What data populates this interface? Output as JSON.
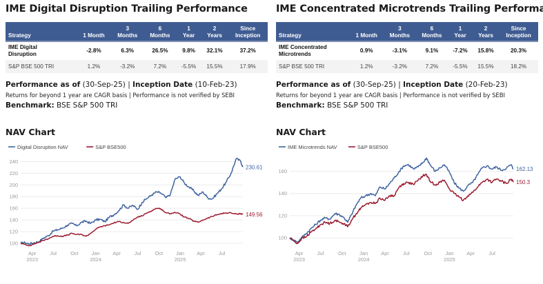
{
  "panels": [
    {
      "title": "IME Digital Disruption Trailing Performance",
      "table": {
        "headers": [
          [
            "Strategy"
          ],
          [
            "1 Month"
          ],
          [
            "3",
            "Months"
          ],
          [
            "6",
            "Months"
          ],
          [
            "1",
            "Year"
          ],
          [
            "2",
            "Years"
          ],
          [
            "Since",
            "Inception"
          ]
        ],
        "rows": [
          {
            "name": [
              "IME Digital",
              "Disruption"
            ],
            "values": [
              "-2.8%",
              "6.3%",
              "26.5%",
              "9.8%",
              "32.1%",
              "37.2%"
            ]
          },
          {
            "name": [
              "S&P BSE 500 TRI"
            ],
            "values": [
              "1.2%",
              "-3.2%",
              "7.2%",
              "-5.5%",
              "15.5%",
              "17.9%"
            ]
          }
        ]
      },
      "perf_asof_label": "Performance as of",
      "perf_asof_value": " (30-Sep-25) | ",
      "inception_label": "Inception Date",
      "inception_value": " (10-Feb-23)",
      "note": "Returns for beyond 1 year are CAGR basis | Performance is not verified by SEBI",
      "benchmark_label": "Benchmark:",
      "benchmark_value": " BSE S&P 500 TRI",
      "nav_title": "NAV Chart"
    },
    {
      "title": "IME Concentrated Microtrends Trailing Performance",
      "table": {
        "headers": [
          [
            "Strategy"
          ],
          [
            "1 Month"
          ],
          [
            "3",
            "Months"
          ],
          [
            "6",
            "Months"
          ],
          [
            "1",
            "Year"
          ],
          [
            "2",
            "Years"
          ],
          [
            "Since",
            "Inception"
          ]
        ],
        "rows": [
          {
            "name": [
              "IME Concentrated",
              "Microtrends"
            ],
            "values": [
              "0.9%",
              "-3.1%",
              "9.1%",
              "-7.2%",
              "15.8%",
              "20.3%"
            ]
          },
          {
            "name": [
              "S&P BSE 500 TRI"
            ],
            "values": [
              "1.2%",
              "-3.2%",
              "7.2%",
              "-5.5%",
              "15.5%",
              "18.2%"
            ]
          }
        ]
      },
      "perf_asof_label": "Performance as of",
      "perf_asof_value": " (30-Sep-25) | ",
      "inception_label": "Inception Date",
      "inception_value": " (20-Feb-23)",
      "note": "Returns for beyond 1 year are CAGR basis | Performance is not verified by SEBI",
      "benchmark_label": "Benchmark:",
      "benchmark_value": " BSE S&P 500 TRI",
      "nav_title": "NAV Chart"
    }
  ],
  "colors": {
    "header_bg": "#3f5c92",
    "strategy_line": "#3f64a0",
    "benchmark_line": "#9b1b30"
  },
  "chart_data": [
    {
      "type": "line",
      "title": "NAV Chart",
      "xlabel": "",
      "ylabel": "",
      "x_range": [
        "2023-02-10",
        "2025-09-30"
      ],
      "ylim": [
        94,
        250
      ],
      "yticks": [
        100,
        120,
        140,
        160,
        180,
        200,
        220,
        240
      ],
      "xticks": [
        {
          "date": "2023-04-01",
          "label": "Apr",
          "sub": "2023"
        },
        {
          "date": "2023-07-01",
          "label": "Jul",
          "sub": ""
        },
        {
          "date": "2023-10-01",
          "label": "Oct",
          "sub": ""
        },
        {
          "date": "2024-01-01",
          "label": "Jan",
          "sub": "2024"
        },
        {
          "date": "2024-04-01",
          "label": "Apr",
          "sub": ""
        },
        {
          "date": "2024-07-01",
          "label": "Jul",
          "sub": ""
        },
        {
          "date": "2024-10-01",
          "label": "Oct",
          "sub": ""
        },
        {
          "date": "2025-01-01",
          "label": "Jan",
          "sub": "2025"
        },
        {
          "date": "2025-04-01",
          "label": "Apr",
          "sub": ""
        },
        {
          "date": "2025-07-01",
          "label": "Jul",
          "sub": ""
        }
      ],
      "grid": true,
      "legend": "top-left",
      "x": [
        "2023-02-10",
        "2023-03-01",
        "2023-03-20",
        "2023-04-10",
        "2023-05-01",
        "2023-05-20",
        "2023-06-10",
        "2023-07-01",
        "2023-07-20",
        "2023-08-10",
        "2023-09-01",
        "2023-09-20",
        "2023-10-10",
        "2023-11-01",
        "2023-11-20",
        "2023-12-10",
        "2024-01-01",
        "2024-01-20",
        "2024-02-10",
        "2024-03-01",
        "2024-03-20",
        "2024-04-10",
        "2024-05-01",
        "2024-05-20",
        "2024-06-10",
        "2024-07-01",
        "2024-07-20",
        "2024-08-10",
        "2024-09-01",
        "2024-09-20",
        "2024-10-10",
        "2024-11-01",
        "2024-11-20",
        "2024-12-10",
        "2025-01-01",
        "2025-01-20",
        "2025-02-10",
        "2025-03-01",
        "2025-03-20",
        "2025-04-10",
        "2025-05-01",
        "2025-05-20",
        "2025-06-10",
        "2025-07-01",
        "2025-07-20",
        "2025-08-10",
        "2025-09-01",
        "2025-09-20",
        "2025-09-30"
      ],
      "series": [
        {
          "name": "Digital Disruption NAV",
          "end_label": "230.61",
          "values": [
            100,
            101,
            99,
            101,
            103,
            109,
            113,
            121,
            123,
            126,
            131,
            134,
            130,
            136,
            138,
            134,
            140,
            141,
            137,
            145,
            149,
            156,
            166,
            160,
            165,
            158,
            170,
            177,
            183,
            188,
            186,
            178,
            184,
            210,
            214,
            203,
            196,
            190,
            182,
            188,
            178,
            176,
            185,
            194,
            205,
            220,
            245,
            241,
            230.61
          ]
        },
        {
          "name": "S&P BSE500",
          "end_label": "149.56",
          "values": [
            100,
            98,
            96,
            99,
            102,
            105,
            108,
            112,
            113,
            112,
            114,
            117,
            115,
            115,
            112,
            117,
            124,
            128,
            130,
            132,
            135,
            137,
            136,
            134,
            139,
            145,
            147,
            152,
            156,
            160,
            159,
            152,
            151,
            153,
            150,
            145,
            142,
            138,
            136,
            140,
            143,
            146,
            149,
            151,
            152,
            152,
            150,
            151,
            149.56
          ]
        }
      ]
    },
    {
      "type": "line",
      "title": "NAV Chart",
      "xlabel": "",
      "ylabel": "",
      "x_range": [
        "2023-02-20",
        "2025-09-30"
      ],
      "ylim": [
        92,
        174
      ],
      "yticks": [
        100,
        120,
        140,
        160
      ],
      "xticks": [
        {
          "date": "2023-04-01",
          "label": "Apr",
          "sub": "2023"
        },
        {
          "date": "2023-07-01",
          "label": "Jul",
          "sub": ""
        },
        {
          "date": "2023-10-01",
          "label": "Oct",
          "sub": ""
        },
        {
          "date": "2024-01-01",
          "label": "Jan",
          "sub": "2024"
        },
        {
          "date": "2024-04-01",
          "label": "Apr",
          "sub": ""
        },
        {
          "date": "2024-07-01",
          "label": "Jul",
          "sub": ""
        },
        {
          "date": "2024-10-01",
          "label": "Oct",
          "sub": ""
        },
        {
          "date": "2025-01-01",
          "label": "Jan",
          "sub": "2025"
        },
        {
          "date": "2025-04-01",
          "label": "Apr",
          "sub": ""
        },
        {
          "date": "2025-07-01",
          "label": "Jul",
          "sub": ""
        }
      ],
      "grid": true,
      "legend": "top-left",
      "x": [
        "2023-02-20",
        "2023-03-10",
        "2023-03-25",
        "2023-04-10",
        "2023-05-01",
        "2023-05-20",
        "2023-06-10",
        "2023-07-01",
        "2023-07-20",
        "2023-08-10",
        "2023-09-01",
        "2023-09-20",
        "2023-10-10",
        "2023-10-25",
        "2023-11-10",
        "2023-12-01",
        "2023-12-20",
        "2024-01-10",
        "2024-02-01",
        "2024-02-20",
        "2024-03-10",
        "2024-04-01",
        "2024-04-20",
        "2024-05-10",
        "2024-06-01",
        "2024-06-20",
        "2024-07-10",
        "2024-08-01",
        "2024-08-20",
        "2024-09-10",
        "2024-09-25",
        "2024-10-10",
        "2024-11-01",
        "2024-11-20",
        "2024-12-10",
        "2025-01-01",
        "2025-01-20",
        "2025-02-10",
        "2025-03-01",
        "2025-03-20",
        "2025-04-10",
        "2025-05-01",
        "2025-05-20",
        "2025-06-10",
        "2025-07-01",
        "2025-07-20",
        "2025-08-10",
        "2025-09-01",
        "2025-09-20",
        "2025-09-30"
      ],
      "series": [
        {
          "name": "IME Microtrends NAV",
          "end_label": "162.13",
          "values": [
            100,
            98,
            96,
            100,
            104,
            108,
            112,
            116,
            118,
            117,
            122,
            121,
            118,
            114,
            121,
            130,
            136,
            138,
            140,
            138,
            146,
            144,
            149,
            154,
            160,
            165,
            166,
            162,
            164,
            168,
            172,
            166,
            160,
            163,
            166,
            159,
            150,
            145,
            142,
            147,
            150,
            157,
            163,
            165,
            162,
            164,
            161,
            163,
            166,
            162.13
          ]
        },
        {
          "name": "S&P BSE500",
          "end_label": "150.3",
          "values": [
            100,
            97,
            95,
            99,
            101,
            105,
            108,
            112,
            114,
            113,
            116,
            114,
            113,
            110,
            116,
            122,
            127,
            130,
            132,
            131,
            136,
            134,
            138,
            138,
            146,
            149,
            150,
            148,
            152,
            156,
            157,
            151,
            148,
            150,
            152,
            144,
            140,
            137,
            134,
            138,
            141,
            146,
            150,
            153,
            150,
            153,
            151,
            149,
            153,
            150.3
          ]
        }
      ]
    }
  ]
}
